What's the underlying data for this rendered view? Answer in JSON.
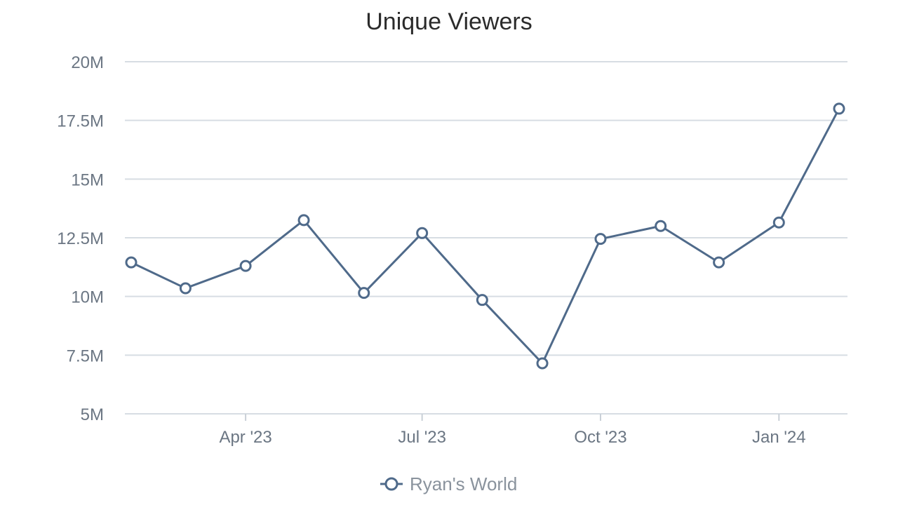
{
  "chart_data": {
    "type": "line",
    "title": "Unique Viewers",
    "xlabel": "",
    "ylabel": "",
    "x": [
      "2023-02-01",
      "2023-03-01",
      "2023-04-01",
      "2023-05-01",
      "2023-06-01",
      "2023-07-01",
      "2023-08-01",
      "2023-09-01",
      "2023-10-01",
      "2023-11-01",
      "2023-12-01",
      "2024-01-01",
      "2024-02-01"
    ],
    "x_tick_labels": [
      "Apr '23",
      "Jul '23",
      "Oct '23",
      "Jan '24"
    ],
    "x_tick_dates": [
      "2023-04-01",
      "2023-07-01",
      "2023-10-01",
      "2024-01-01"
    ],
    "y_tick_labels": [
      "5M",
      "7.5M",
      "10M",
      "12.5M",
      "15M",
      "17.5M",
      "20M"
    ],
    "y_tick_values": [
      5000000,
      7500000,
      10000000,
      12500000,
      15000000,
      17500000,
      20000000
    ],
    "ylim": [
      5000000,
      20000000
    ],
    "grid": true,
    "legend_position": "bottom-center",
    "series": [
      {
        "name": "Ryan's World",
        "color": "#4f6a8a",
        "marker": "hollow-circle",
        "values": [
          11450000,
          10350000,
          11300000,
          13250000,
          10150000,
          12700000,
          9850000,
          7150000,
          12450000,
          13000000,
          11450000,
          13150000,
          18000000
        ]
      }
    ]
  }
}
